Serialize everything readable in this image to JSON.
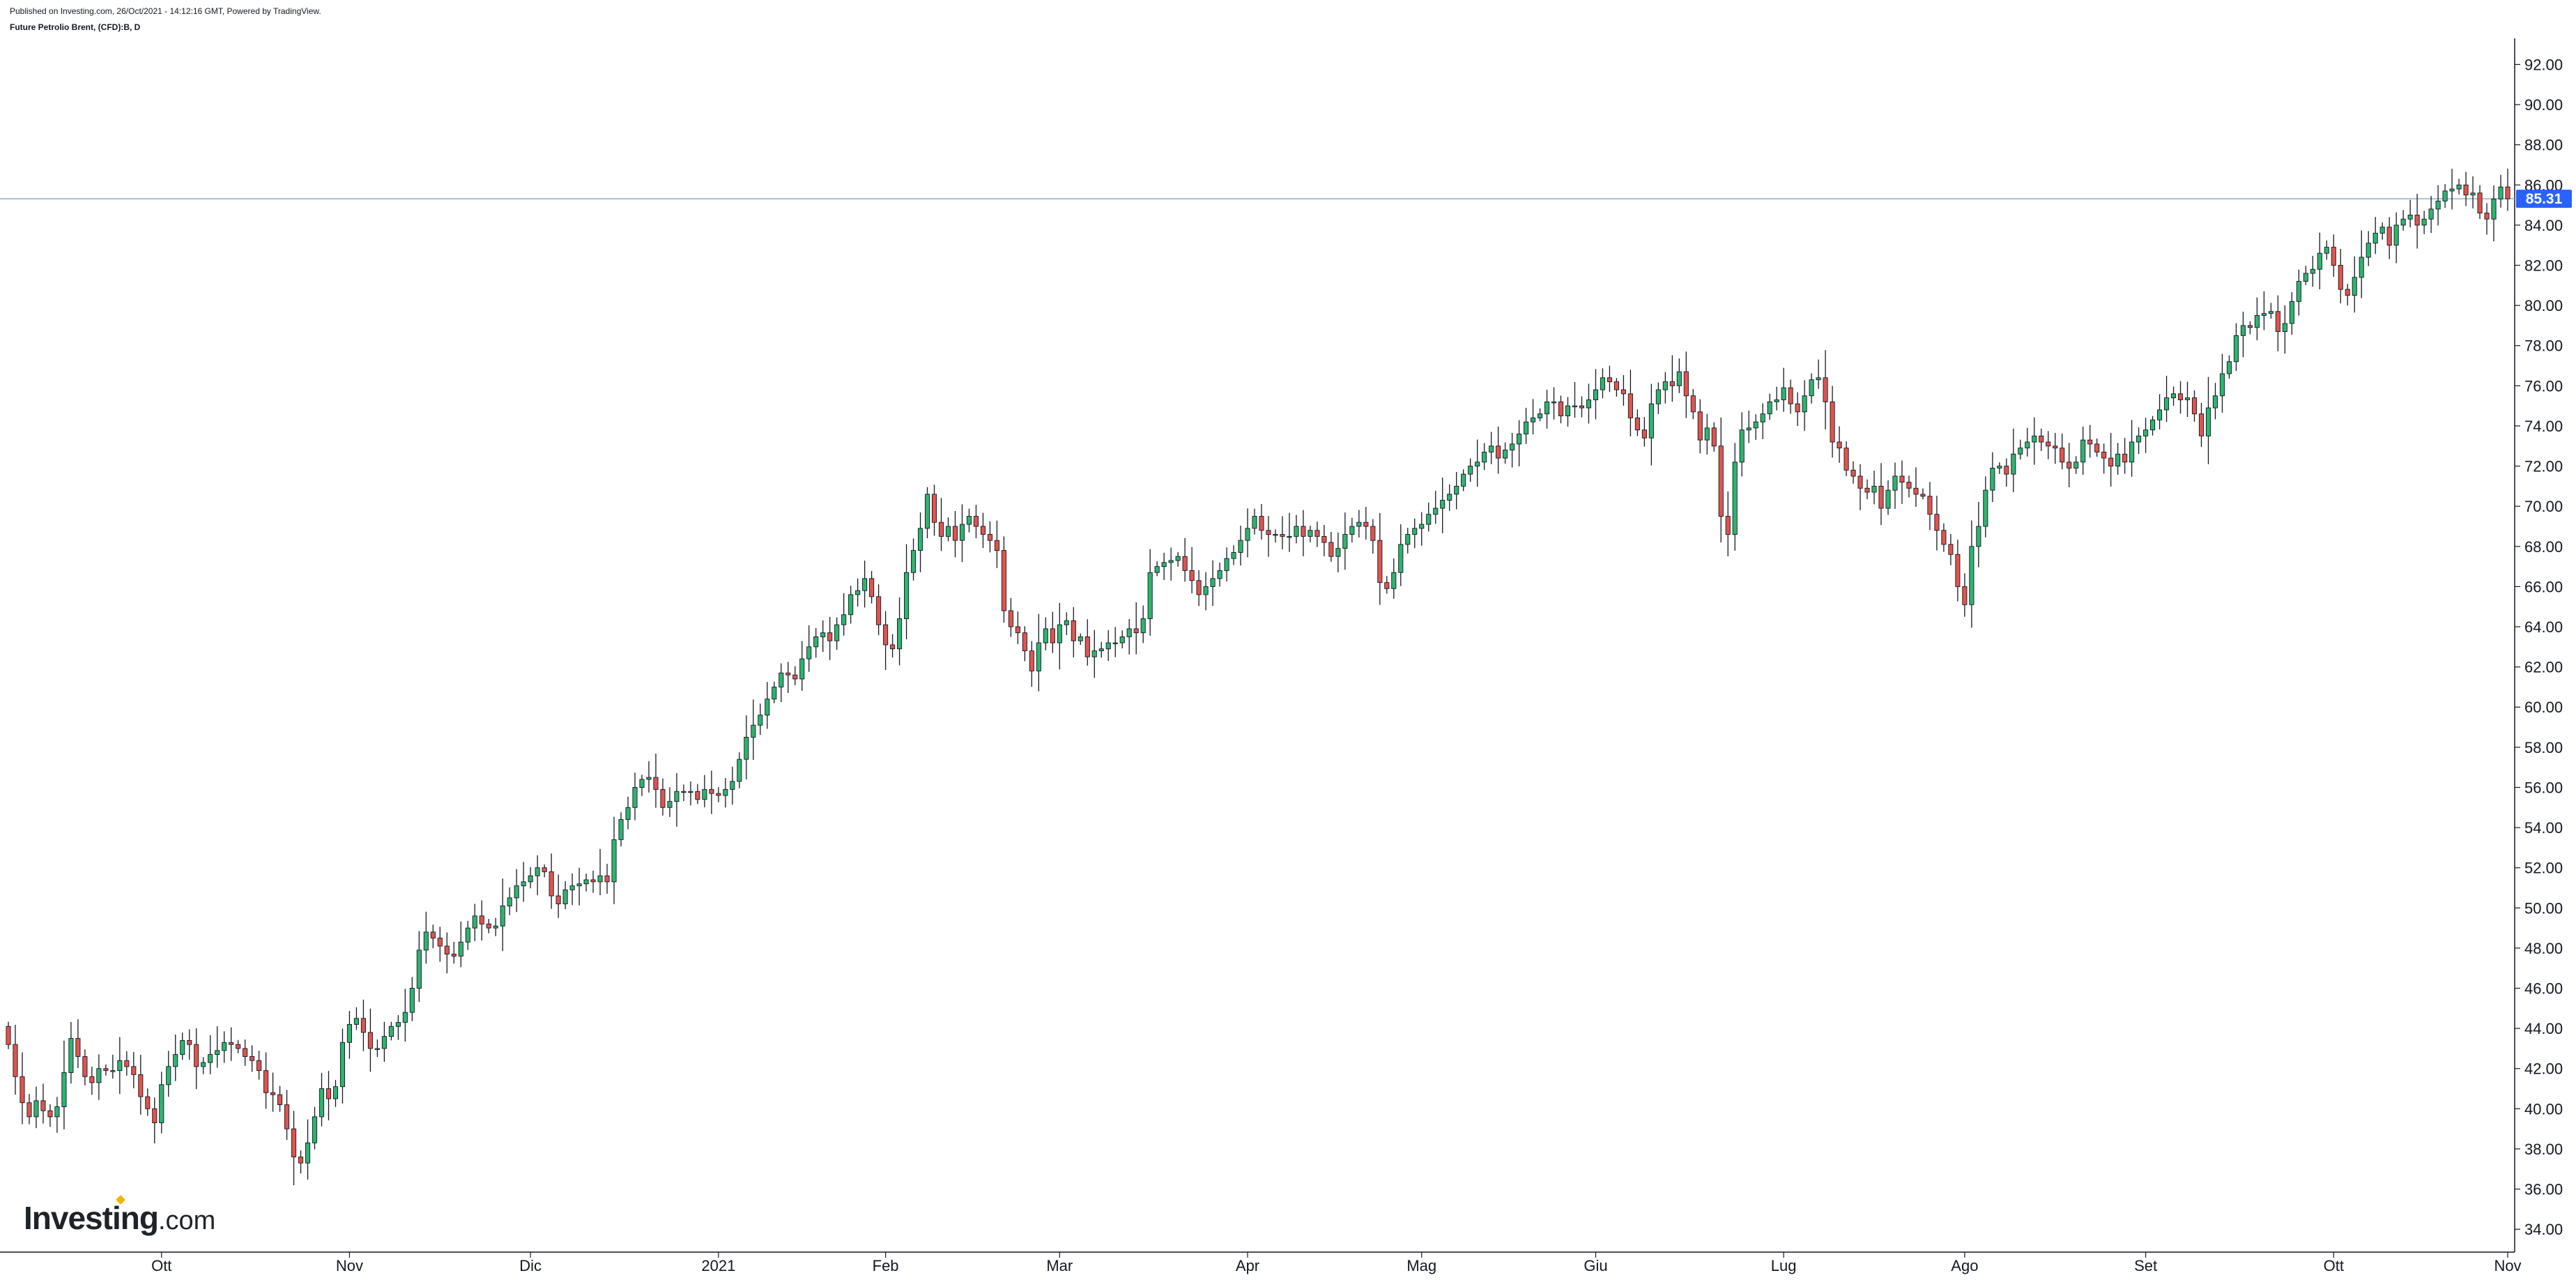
{
  "header": {
    "published": "Published on Investing.com, 26/Oct/2021 - 14:12:16 GMT, Powered by TradingView.",
    "symbol": "Future Petrolio Brent, (CFD):B, D"
  },
  "branding": {
    "logo_main": "Investing",
    "logo_suffix": ".com"
  },
  "chart_data": {
    "type": "candlestick",
    "ylim": [
      33,
      93.3
    ],
    "y_ticks": [
      "34.00",
      "36.00",
      "38.00",
      "40.00",
      "42.00",
      "44.00",
      "46.00",
      "48.00",
      "50.00",
      "52.00",
      "54.00",
      "56.00",
      "58.00",
      "60.00",
      "62.00",
      "64.00",
      "66.00",
      "68.00",
      "70.00",
      "72.00",
      "74.00",
      "76.00",
      "78.00",
      "80.00",
      "82.00",
      "84.00",
      "86.00",
      "88.00",
      "90.00",
      "92.00"
    ],
    "x_ticks": [
      {
        "label": "Ott",
        "index": 22
      },
      {
        "label": "Nov",
        "index": 49
      },
      {
        "label": "Dic",
        "index": 75
      },
      {
        "label": "2021",
        "index": 102
      },
      {
        "label": "Feb",
        "index": 126
      },
      {
        "label": "Mar",
        "index": 151
      },
      {
        "label": "Apr",
        "index": 178
      },
      {
        "label": "Mag",
        "index": 203
      },
      {
        "label": "Giu",
        "index": 228
      },
      {
        "label": "Lug",
        "index": 255
      },
      {
        "label": "Ago",
        "index": 281
      },
      {
        "label": "Set",
        "index": 307
      },
      {
        "label": "Ott",
        "index": 334
      },
      {
        "label": "Nov",
        "index": 359
      }
    ],
    "last_price": 85.31,
    "last_price_label": "85.31",
    "colors": {
      "up": "#26a69a",
      "up_fill": "#2eb46e",
      "down": "#e0544f",
      "wick": "#131722",
      "last_line": "#8fb0c8",
      "badge": "#2962ff"
    },
    "closes": [
      43.2,
      41.6,
      40.3,
      39.6,
      40.4,
      39.9,
      39.6,
      40.1,
      41.8,
      43.5,
      42.6,
      41.6,
      41.3,
      42.0,
      41.9,
      41.9,
      42.4,
      42.1,
      41.7,
      40.6,
      40.0,
      39.3,
      41.2,
      42.1,
      42.7,
      43.4,
      43.2,
      42.1,
      42.3,
      42.7,
      42.9,
      43.3,
      43.2,
      43.0,
      42.6,
      42.4,
      41.9,
      40.8,
      40.7,
      40.2,
      39.0,
      37.6,
      37.3,
      38.3,
      39.6,
      41.0,
      40.5,
      41.1,
      43.3,
      44.2,
      44.5,
      43.8,
      43.0,
      43.0,
      43.6,
      44.1,
      44.3,
      44.8,
      46.0,
      47.9,
      48.8,
      48.5,
      48.1,
      47.7,
      47.6,
      48.3,
      49.0,
      49.6,
      49.2,
      49.0,
      49.1,
      50.1,
      50.5,
      51.1,
      51.3,
      51.6,
      52.0,
      51.8,
      50.6,
      50.2,
      50.9,
      51.1,
      51.2,
      51.4,
      51.3,
      51.6,
      51.3,
      53.4,
      54.4,
      55.0,
      56.0,
      56.4,
      56.5,
      55.9,
      55.0,
      55.3,
      55.8,
      55.8,
      55.8,
      55.4,
      55.9,
      55.7,
      55.6,
      55.9,
      56.3,
      57.4,
      58.5,
      59.1,
      59.6,
      60.4,
      61.0,
      61.7,
      61.6,
      61.4,
      62.4,
      63.0,
      63.5,
      63.7,
      63.3,
      64.1,
      64.6,
      65.6,
      65.8,
      66.4,
      65.5,
      64.1,
      63.1,
      62.9,
      64.4,
      66.7,
      67.8,
      68.9,
      70.6,
      69.2,
      68.5,
      69.0,
      68.3,
      69.1,
      69.5,
      69.0,
      68.6,
      68.3,
      67.8,
      64.8,
      64.0,
      63.7,
      62.8,
      61.8,
      63.2,
      63.9,
      63.2,
      64.1,
      64.3,
      63.3,
      63.5,
      62.5,
      62.8,
      62.9,
      63.2,
      63.2,
      63.5,
      63.9,
      63.7,
      64.4,
      66.7,
      67.0,
      67.2,
      67.3,
      67.5,
      66.8,
      66.3,
      65.6,
      66.0,
      66.4,
      66.8,
      67.4,
      67.7,
      68.3,
      68.9,
      69.5,
      68.8,
      68.6,
      68.6,
      68.5,
      68.5,
      69.0,
      68.5,
      68.8,
      68.5,
      68.2,
      67.5,
      67.9,
      68.6,
      69.0,
      69.2,
      69.0,
      68.3,
      66.2,
      65.9,
      66.7,
      68.1,
      68.6,
      68.9,
      69.1,
      69.6,
      69.9,
      70.3,
      70.6,
      71.0,
      71.6,
      72.0,
      72.2,
      72.7,
      73.0,
      72.4,
      72.8,
      73.1,
      73.6,
      74.2,
      74.4,
      74.6,
      75.2,
      75.2,
      74.5,
      75.0,
      75.0,
      74.9,
      75.3,
      75.8,
      76.4,
      76.2,
      75.8,
      75.6,
      74.4,
      73.8,
      73.4,
      75.1,
      75.8,
      76.2,
      76.0,
      76.7,
      75.5,
      74.7,
      73.3,
      73.9,
      73.0,
      69.5,
      68.6,
      72.2,
      73.8,
      73.9,
      74.2,
      74.6,
      75.2,
      75.3,
      75.9,
      75.1,
      74.7,
      75.5,
      76.3,
      76.4,
      75.2,
      73.2,
      72.9,
      71.8,
      71.5,
      70.9,
      70.7,
      71.0,
      69.9,
      70.8,
      71.5,
      71.2,
      70.9,
      70.6,
      70.5,
      69.6,
      68.8,
      68.1,
      67.6,
      66.0,
      65.1,
      68.0,
      69.0,
      70.8,
      71.9,
      72.0,
      71.6,
      72.6,
      72.9,
      73.2,
      73.5,
      73.2,
      73.0,
      72.9,
      72.2,
      71.9,
      72.2,
      73.3,
      73.1,
      72.7,
      72.4,
      72.0,
      72.6,
      72.2,
      73.2,
      73.5,
      73.8,
      74.3,
      74.8,
      75.4,
      75.6,
      75.3,
      75.4,
      74.6,
      73.5,
      74.9,
      75.5,
      76.6,
      77.2,
      78.5,
      79.0,
      78.9,
      79.5,
      79.6,
      79.7,
      78.7,
      79.1,
      80.2,
      81.2,
      81.6,
      81.8,
      82.6,
      82.9,
      82.0,
      80.8,
      80.5,
      81.4,
      82.4,
      83.1,
      83.6,
      83.9,
      83.0,
      84.0,
      84.3,
      84.5,
      84.0,
      84.3,
      84.8,
      85.2,
      85.7,
      85.8,
      86.0,
      85.5,
      85.6,
      84.6,
      84.3,
      85.3,
      85.9,
      85.31
    ]
  }
}
